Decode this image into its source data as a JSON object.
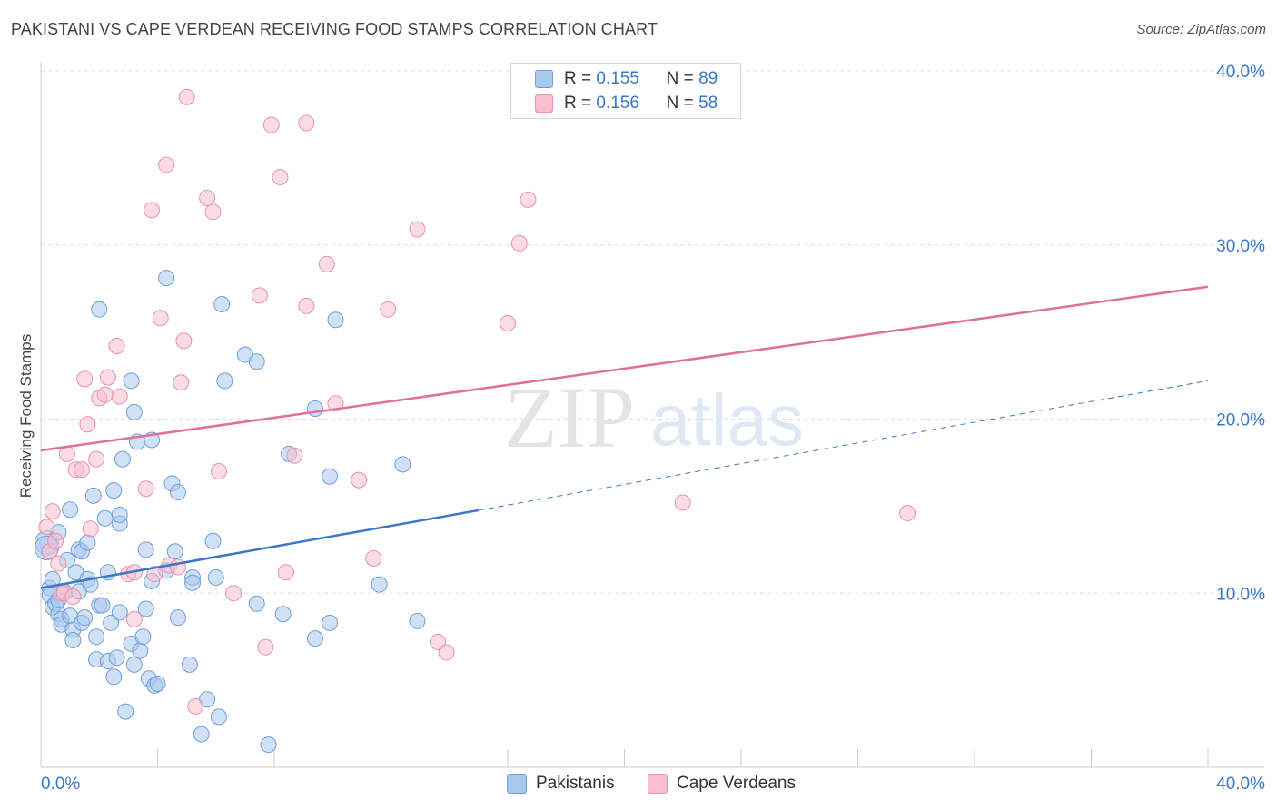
{
  "title": "PAKISTANI VS CAPE VERDEAN RECEIVING FOOD STAMPS CORRELATION CHART",
  "source": "Source: ZipAtlas.com",
  "watermark": {
    "zip": "ZIP",
    "atlas": "atlas"
  },
  "legend": {
    "rows": [
      {
        "r_label": "R =",
        "r_value": "0.155",
        "n_label": "N =",
        "n_value": "89"
      },
      {
        "r_label": "R =",
        "r_value": "0.156",
        "n_label": "N =",
        "n_value": "58"
      }
    ]
  },
  "colors": {
    "blue_fill": "#a9c8ef",
    "blue_stroke": "#6f9fd8",
    "blue_line": "#3a78c9",
    "pink_fill": "#f7bfd0",
    "pink_stroke": "#e793ae",
    "pink_line": "#e07098",
    "tick_text": "#3a78c9"
  },
  "chart_data": {
    "type": "scatter",
    "title": "PAKISTANI VS CAPE VERDEAN RECEIVING FOOD STAMPS CORRELATION CHART",
    "xlabel": "",
    "ylabel": "Receiving Food Stamps",
    "xlim": [
      0,
      40
    ],
    "ylim": [
      0,
      40
    ],
    "x_tick_labels": [
      "0.0%",
      "40.0%"
    ],
    "y_ticks": [
      10,
      20,
      30,
      40
    ],
    "y_tick_labels": [
      "10.0%",
      "20.0%",
      "30.0%",
      "40.0%"
    ],
    "series": [
      {
        "name": "Pakistanis",
        "color": "blue",
        "r": 0.155,
        "n": 89,
        "trend": {
          "x0": 0,
          "y0": 10.3,
          "x1": 40,
          "y1": 22.2,
          "solid_until": 15
        },
        "points": [
          [
            0.2,
            12.9
          ],
          [
            0.2,
            12.6
          ],
          [
            0.3,
            10.3
          ],
          [
            0.3,
            9.9
          ],
          [
            0.4,
            10.8
          ],
          [
            0.4,
            9.2
          ],
          [
            0.5,
            9.4
          ],
          [
            0.6,
            8.8
          ],
          [
            0.6,
            9.6
          ],
          [
            0.7,
            8.5
          ],
          [
            0.7,
            8.2
          ],
          [
            0.8,
            10.1
          ],
          [
            0.9,
            11.9
          ],
          [
            1.0,
            8.7
          ],
          [
            1.1,
            7.9
          ],
          [
            1.1,
            7.3
          ],
          [
            1.2,
            11.2
          ],
          [
            1.3,
            10.1
          ],
          [
            1.3,
            12.5
          ],
          [
            1.4,
            12.4
          ],
          [
            1.4,
            8.3
          ],
          [
            1.5,
            8.6
          ],
          [
            1.6,
            12.9
          ],
          [
            1.6,
            10.8
          ],
          [
            1.7,
            10.5
          ],
          [
            1.8,
            15.6
          ],
          [
            1.9,
            7.5
          ],
          [
            1.9,
            6.2
          ],
          [
            2.0,
            9.3
          ],
          [
            2.1,
            9.3
          ],
          [
            2.2,
            14.3
          ],
          [
            2.3,
            11.2
          ],
          [
            2.3,
            6.1
          ],
          [
            2.4,
            8.3
          ],
          [
            2.5,
            15.9
          ],
          [
            2.5,
            5.2
          ],
          [
            2.6,
            6.3
          ],
          [
            2.7,
            8.9
          ],
          [
            2.7,
            14.0
          ],
          [
            2.7,
            14.5
          ],
          [
            2.8,
            17.7
          ],
          [
            2.9,
            3.2
          ],
          [
            3.1,
            7.1
          ],
          [
            3.1,
            22.2
          ],
          [
            3.2,
            5.9
          ],
          [
            3.3,
            18.7
          ],
          [
            3.4,
            6.7
          ],
          [
            3.5,
            7.5
          ],
          [
            3.6,
            9.1
          ],
          [
            3.6,
            12.5
          ],
          [
            3.7,
            5.1
          ],
          [
            3.8,
            18.8
          ],
          [
            3.8,
            10.7
          ],
          [
            3.9,
            4.7
          ],
          [
            4.0,
            4.8
          ],
          [
            4.3,
            11.3
          ],
          [
            4.5,
            16.3
          ],
          [
            4.6,
            12.4
          ],
          [
            4.7,
            15.8
          ],
          [
            4.7,
            8.6
          ],
          [
            5.1,
            5.9
          ],
          [
            5.2,
            10.9
          ],
          [
            5.2,
            10.6
          ],
          [
            5.5,
            1.9
          ],
          [
            5.7,
            3.9
          ],
          [
            5.9,
            13.0
          ],
          [
            6.0,
            10.9
          ],
          [
            6.1,
            2.9
          ],
          [
            6.2,
            26.6
          ],
          [
            6.3,
            22.2
          ],
          [
            7.0,
            23.7
          ],
          [
            7.4,
            23.3
          ],
          [
            7.4,
            9.4
          ],
          [
            7.8,
            1.3
          ],
          [
            8.3,
            8.8
          ],
          [
            8.5,
            18.0
          ],
          [
            9.4,
            7.4
          ],
          [
            9.4,
            20.6
          ],
          [
            9.9,
            8.3
          ],
          [
            9.9,
            16.7
          ],
          [
            10.1,
            25.7
          ],
          [
            11.6,
            10.5
          ],
          [
            12.4,
            17.4
          ],
          [
            12.9,
            8.4
          ],
          [
            4.3,
            28.1
          ],
          [
            2.0,
            26.3
          ],
          [
            3.2,
            20.4
          ],
          [
            1.0,
            14.8
          ],
          [
            0.6,
            13.5
          ]
        ]
      },
      {
        "name": "Cape Verdeans",
        "color": "pink",
        "r": 0.156,
        "n": 58,
        "trend": {
          "x0": 0,
          "y0": 18.2,
          "x1": 40,
          "y1": 27.6,
          "solid_until": 40
        },
        "points": [
          [
            0.2,
            13.8
          ],
          [
            0.3,
            12.4
          ],
          [
            0.4,
            14.7
          ],
          [
            0.5,
            13.0
          ],
          [
            0.6,
            11.7
          ],
          [
            0.7,
            10.0
          ],
          [
            0.8,
            10.0
          ],
          [
            0.9,
            18.0
          ],
          [
            1.1,
            9.8
          ],
          [
            1.2,
            17.1
          ],
          [
            1.4,
            17.1
          ],
          [
            1.5,
            22.3
          ],
          [
            1.6,
            19.7
          ],
          [
            1.7,
            13.7
          ],
          [
            1.9,
            17.7
          ],
          [
            2.0,
            21.2
          ],
          [
            2.2,
            21.4
          ],
          [
            2.3,
            22.4
          ],
          [
            2.6,
            24.2
          ],
          [
            2.7,
            21.3
          ],
          [
            3.0,
            11.1
          ],
          [
            3.2,
            11.2
          ],
          [
            3.2,
            8.5
          ],
          [
            3.6,
            16.0
          ],
          [
            3.8,
            32.0
          ],
          [
            3.9,
            11.1
          ],
          [
            4.1,
            25.8
          ],
          [
            4.3,
            34.6
          ],
          [
            4.4,
            11.6
          ],
          [
            4.7,
            11.5
          ],
          [
            4.8,
            22.1
          ],
          [
            4.9,
            24.5
          ],
          [
            5.0,
            38.5
          ],
          [
            5.3,
            3.5
          ],
          [
            5.7,
            32.7
          ],
          [
            5.9,
            31.9
          ],
          [
            6.1,
            17.0
          ],
          [
            6.6,
            10.0
          ],
          [
            7.5,
            27.1
          ],
          [
            7.7,
            6.9
          ],
          [
            7.9,
            36.9
          ],
          [
            8.2,
            33.9
          ],
          [
            8.4,
            11.2
          ],
          [
            8.7,
            17.9
          ],
          [
            9.1,
            37.0
          ],
          [
            9.1,
            26.5
          ],
          [
            9.8,
            28.9
          ],
          [
            10.1,
            20.9
          ],
          [
            10.9,
            16.5
          ],
          [
            11.4,
            12.0
          ],
          [
            11.9,
            26.3
          ],
          [
            12.9,
            30.9
          ],
          [
            13.6,
            7.2
          ],
          [
            13.9,
            6.6
          ],
          [
            16.0,
            25.5
          ],
          [
            16.4,
            30.1
          ],
          [
            16.7,
            32.6
          ],
          [
            22.0,
            15.2
          ]
        ]
      },
      {
        "name": "Cape Verdeans outlier",
        "color": "pink",
        "points": [
          [
            29.7,
            14.6
          ]
        ]
      }
    ],
    "bottom_legend": [
      "Pakistanis",
      "Cape Verdeans"
    ]
  }
}
